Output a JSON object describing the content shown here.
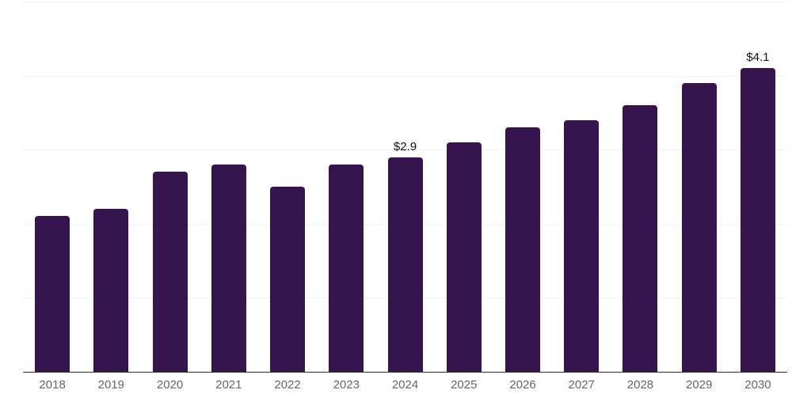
{
  "chart": {
    "background_color": "#ffffff",
    "bar_color": "#36154e",
    "grid_color": "#f2f2f2",
    "axis_color": "#2f2f2f",
    "tick_label_color": "#666666",
    "data_label_color": "#111111"
  },
  "chart_data": {
    "type": "bar",
    "title": "",
    "xlabel": "",
    "ylabel": "",
    "categories": [
      "2018",
      "2019",
      "2020",
      "2021",
      "2022",
      "2023",
      "2024",
      "2025",
      "2026",
      "2027",
      "2028",
      "2029",
      "2030"
    ],
    "values": [
      2.1,
      2.2,
      2.7,
      2.8,
      2.5,
      2.8,
      2.9,
      3.1,
      3.3,
      3.4,
      3.6,
      3.9,
      4.1
    ],
    "data_labels": [
      "",
      "",
      "",
      "",
      "",
      "",
      "$2.9",
      "",
      "",
      "",
      "",
      "",
      "$4.1"
    ],
    "ylim": [
      0,
      5
    ],
    "grid_step": 1,
    "grid": true,
    "legend": false,
    "y_axis_labels_visible": false
  }
}
